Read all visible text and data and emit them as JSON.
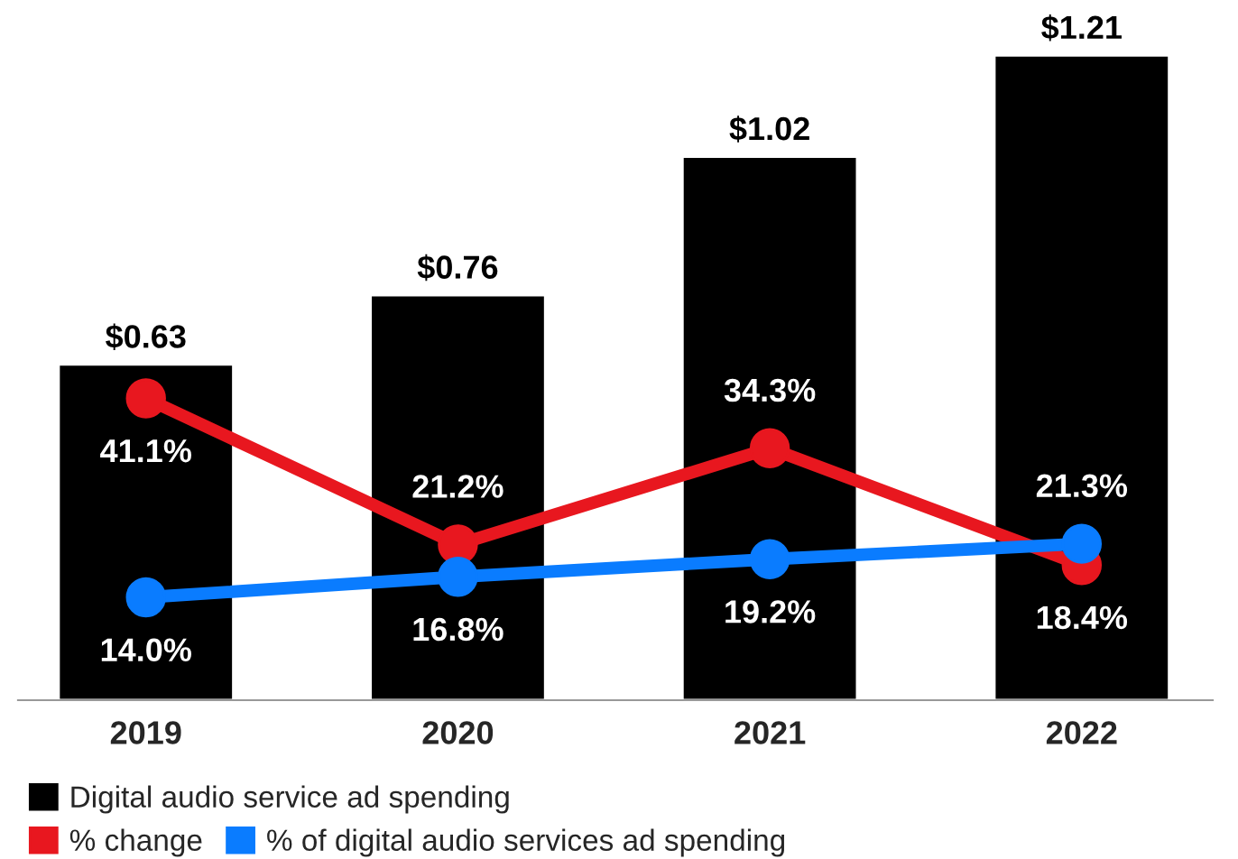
{
  "chart_data": {
    "type": "bar",
    "categories": [
      "2019",
      "2020",
      "2021",
      "2022"
    ],
    "series": [
      {
        "name": "Digital audio service ad spending",
        "color": "#000000",
        "values": [
          0.63,
          0.76,
          1.02,
          1.21
        ],
        "value_labels": [
          "$0.63",
          "$0.76",
          "$1.02",
          "$1.21"
        ]
      },
      {
        "name": "% change",
        "type": "line",
        "axis": "y2",
        "color": "#e8171f",
        "values": [
          41.1,
          21.2,
          34.3,
          18.4
        ],
        "value_labels": [
          "41.1%",
          "21.2%",
          "34.3%",
          "18.4%"
        ]
      },
      {
        "name": "% of digital audio services ad spending",
        "type": "line",
        "axis": "y2",
        "color": "#0a7cff",
        "values": [
          14.0,
          16.8,
          19.2,
          21.3
        ],
        "value_labels": [
          "14.0%",
          "16.8%",
          "19.2%",
          "21.3%"
        ]
      }
    ],
    "tick_labels": "x",
    "legend": "bottom",
    "marker": "circle",
    "grid": false
  }
}
